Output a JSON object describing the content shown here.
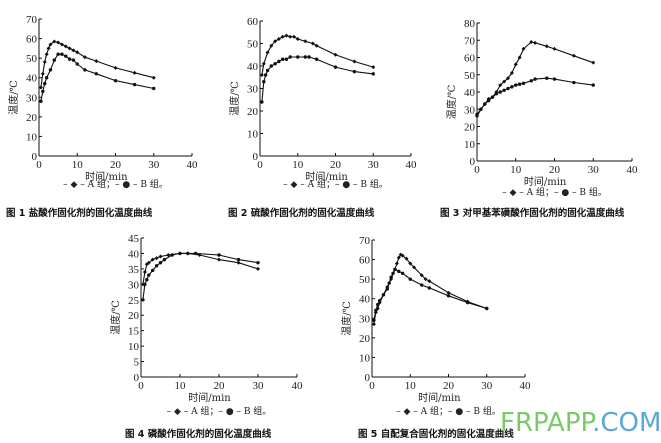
{
  "watermark": {
    "part1": "FRPAPP",
    "part2": ".COM",
    "color1": "#7cc96a",
    "color2": "#5aa8d8"
  },
  "chart_data": [
    {
      "type": "line",
      "caption": "图 1   盐酸作固化剂的固化温度曲线",
      "xlabel": "时间/min",
      "ylabel": "温度/℃",
      "xlim": [
        0,
        40
      ],
      "ylim": [
        0,
        70
      ],
      "xticks": [
        0,
        10,
        20,
        30,
        40
      ],
      "yticks": [
        0,
        10,
        20,
        30,
        40,
        50,
        60,
        70
      ],
      "legend": {
        "text": "– ◆ – A 组；– ● – B 组。",
        "placement": "bottom"
      },
      "series": [
        {
          "name": "A 组",
          "marker": "diamond",
          "points": [
            [
              0.5,
              35
            ],
            [
              1,
              42
            ],
            [
              1.5,
              48
            ],
            [
              2,
              52
            ],
            [
              2.5,
              55
            ],
            [
              3,
              57
            ],
            [
              4,
              58.5
            ],
            [
              5,
              58
            ],
            [
              6,
              57
            ],
            [
              7,
              56
            ],
            [
              8,
              55
            ],
            [
              9,
              54
            ],
            [
              10,
              53
            ],
            [
              12,
              50.5
            ],
            [
              15,
              48.5
            ],
            [
              20,
              45
            ],
            [
              25,
              42.5
            ],
            [
              30,
              40
            ]
          ]
        },
        {
          "name": "B 组",
          "marker": "circle",
          "points": [
            [
              0.5,
              28
            ],
            [
              1,
              33
            ],
            [
              1.5,
              37
            ],
            [
              2,
              40
            ],
            [
              3,
              44
            ],
            [
              4,
              49
            ],
            [
              5,
              52
            ],
            [
              6,
              52
            ],
            [
              7,
              51
            ],
            [
              8,
              49.5
            ],
            [
              9,
              49
            ],
            [
              10,
              47
            ],
            [
              12,
              44
            ],
            [
              15,
              42
            ],
            [
              20,
              38.5
            ],
            [
              25,
              36.5
            ],
            [
              30,
              34.5
            ]
          ]
        }
      ]
    },
    {
      "type": "line",
      "caption": "图 2   硫酸作固化剂的固化温度曲线",
      "xlabel": "时间/min",
      "ylabel": "温度/℃",
      "xlim": [
        0,
        40
      ],
      "ylim": [
        0,
        60
      ],
      "xticks": [
        0,
        10,
        20,
        30,
        40
      ],
      "yticks": [
        0,
        10,
        20,
        30,
        40,
        50,
        60
      ],
      "legend": {
        "text": "– ◆ – A 组；– ● – B 组。",
        "placement": "bottom"
      },
      "series": [
        {
          "name": "A 组",
          "marker": "diamond",
          "points": [
            [
              0.5,
              36
            ],
            [
              1,
              41
            ],
            [
              2,
              46
            ],
            [
              3,
              49
            ],
            [
              4,
              51
            ],
            [
              5,
              52
            ],
            [
              6,
              53
            ],
            [
              7,
              53.5
            ],
            [
              8,
              53
            ],
            [
              9,
              53
            ],
            [
              10,
              52
            ],
            [
              12,
              51
            ],
            [
              14,
              50
            ],
            [
              15,
              49
            ],
            [
              20,
              45
            ],
            [
              25,
              42
            ],
            [
              30,
              39.5
            ]
          ]
        },
        {
          "name": "B 组",
          "marker": "circle",
          "points": [
            [
              0.5,
              24
            ],
            [
              1,
              33
            ],
            [
              1.5,
              36
            ],
            [
              2,
              38
            ],
            [
              3,
              40
            ],
            [
              4,
              41
            ],
            [
              5,
              42
            ],
            [
              6,
              43
            ],
            [
              7,
              43
            ],
            [
              8,
              44
            ],
            [
              10,
              44
            ],
            [
              12,
              44
            ],
            [
              13,
              44
            ],
            [
              15,
              43
            ],
            [
              20,
              39.5
            ],
            [
              25,
              37.5
            ],
            [
              30,
              36.5
            ]
          ]
        }
      ]
    },
    {
      "type": "line",
      "caption": "图 3   对甲基苯磺酸作固化剂的固化温度曲线",
      "xlabel": "时间/min",
      "ylabel": "温度/℃",
      "xlim": [
        0,
        40
      ],
      "ylim": [
        0,
        80
      ],
      "xticks": [
        0,
        10,
        20,
        30,
        40
      ],
      "yticks": [
        0,
        10,
        20,
        30,
        40,
        50,
        60,
        70,
        80
      ],
      "legend": {
        "text": "– ◆ – A 组；– ● – B 组。",
        "placement": "bottom"
      },
      "series": [
        {
          "name": "A 组",
          "marker": "diamond",
          "points": [
            [
              0,
              26
            ],
            [
              1,
              30
            ],
            [
              2,
              33
            ],
            [
              3,
              36
            ],
            [
              4,
              37
            ],
            [
              5,
              40
            ],
            [
              6,
              44
            ],
            [
              7,
              46
            ],
            [
              8,
              48
            ],
            [
              9,
              51
            ],
            [
              10,
              56
            ],
            [
              11,
              60
            ],
            [
              12,
              65
            ],
            [
              14,
              69
            ],
            [
              15,
              68.5
            ],
            [
              18,
              66.5
            ],
            [
              20,
              65
            ],
            [
              25,
              61
            ],
            [
              30,
              57
            ]
          ]
        },
        {
          "name": "B 组",
          "marker": "circle",
          "points": [
            [
              0,
              27
            ],
            [
              1,
              30
            ],
            [
              2,
              33
            ],
            [
              3,
              35
            ],
            [
              4,
              37
            ],
            [
              5,
              39
            ],
            [
              6,
              40
            ],
            [
              7,
              41
            ],
            [
              8,
              42
            ],
            [
              9,
              43
            ],
            [
              10,
              44
            ],
            [
              11,
              44.5
            ],
            [
              12,
              45
            ],
            [
              14,
              46.5
            ],
            [
              15,
              47.5
            ],
            [
              18,
              48
            ],
            [
              20,
              47.5
            ],
            [
              25,
              45.5
            ],
            [
              30,
              44
            ]
          ]
        }
      ]
    },
    {
      "type": "line",
      "caption": "图 4   磷酸作固化剂的固化温度曲线",
      "xlabel": "时间/min",
      "ylabel": "温度/℃",
      "xlim": [
        0,
        40
      ],
      "ylim": [
        0,
        45
      ],
      "xticks": [
        0,
        10,
        20,
        30,
        40
      ],
      "yticks": [
        0,
        5,
        10,
        15,
        20,
        25,
        30,
        35,
        40,
        45
      ],
      "legend": {
        "text": "– ◆ – A 组；– ● – B 组。",
        "placement": "bottom"
      },
      "series": [
        {
          "name": "A 组",
          "marker": "diamond",
          "points": [
            [
              0.5,
              30
            ],
            [
              1,
              34
            ],
            [
              1.5,
              36.5
            ],
            [
              2,
              37
            ],
            [
              3,
              38
            ],
            [
              4,
              38.5
            ],
            [
              5,
              39
            ],
            [
              7,
              39.5
            ],
            [
              10,
              40
            ],
            [
              12,
              40
            ],
            [
              15,
              39.5
            ],
            [
              20,
              38
            ],
            [
              25,
              37
            ],
            [
              30,
              35
            ]
          ]
        },
        {
          "name": "B 组",
          "marker": "circle",
          "points": [
            [
              0.5,
              25
            ],
            [
              1,
              30
            ],
            [
              1.5,
              31.5
            ],
            [
              2,
              33
            ],
            [
              3,
              34.5
            ],
            [
              4,
              36
            ],
            [
              5,
              37
            ],
            [
              6,
              38
            ],
            [
              8,
              39.5
            ],
            [
              10,
              40
            ],
            [
              12,
              40
            ],
            [
              14,
              40
            ],
            [
              20,
              39.5
            ],
            [
              25,
              38
            ],
            [
              30,
              37
            ]
          ]
        }
      ]
    },
    {
      "type": "line",
      "caption": "图 5   自配复合固化剂的固化温度曲线",
      "xlabel": "时间/min",
      "ylabel": "温度/℃",
      "xlim": [
        0,
        40
      ],
      "ylim": [
        0,
        70
      ],
      "xticks": [
        0,
        10,
        20,
        30,
        40
      ],
      "yticks": [
        0,
        10,
        20,
        30,
        40,
        50,
        60,
        70
      ],
      "legend": {
        "text": "– ◆ – A 组；– ● – B 组。",
        "placement": "bottom"
      },
      "series": [
        {
          "name": "A 组",
          "marker": "diamond",
          "points": [
            [
              0.5,
              27
            ],
            [
              1,
              33
            ],
            [
              1.5,
              35
            ],
            [
              2,
              38
            ],
            [
              3,
              42
            ],
            [
              4,
              46
            ],
            [
              5,
              50
            ],
            [
              6,
              55
            ],
            [
              6.5,
              58
            ],
            [
              7,
              61
            ],
            [
              7.5,
              62.5
            ],
            [
              8,
              62
            ],
            [
              9,
              60.5
            ],
            [
              10,
              58
            ],
            [
              11,
              56
            ],
            [
              13,
              52
            ],
            [
              14,
              50
            ],
            [
              15,
              49
            ],
            [
              20,
              43
            ],
            [
              25,
              38.5
            ],
            [
              30,
              35
            ]
          ]
        },
        {
          "name": "B 组",
          "marker": "circle",
          "points": [
            [
              0.5,
              29
            ],
            [
              1,
              34
            ],
            [
              1.5,
              37
            ],
            [
              2,
              39
            ],
            [
              3,
              42
            ],
            [
              4,
              45
            ],
            [
              4.5,
              48
            ],
            [
              5,
              51
            ],
            [
              5.5,
              53
            ],
            [
              6,
              55
            ],
            [
              7,
              54
            ],
            [
              8,
              53
            ],
            [
              10,
              50
            ],
            [
              13,
              47
            ],
            [
              15,
              45.5
            ],
            [
              20,
              41.5
            ],
            [
              25,
              38
            ],
            [
              30,
              35
            ]
          ]
        }
      ]
    }
  ]
}
